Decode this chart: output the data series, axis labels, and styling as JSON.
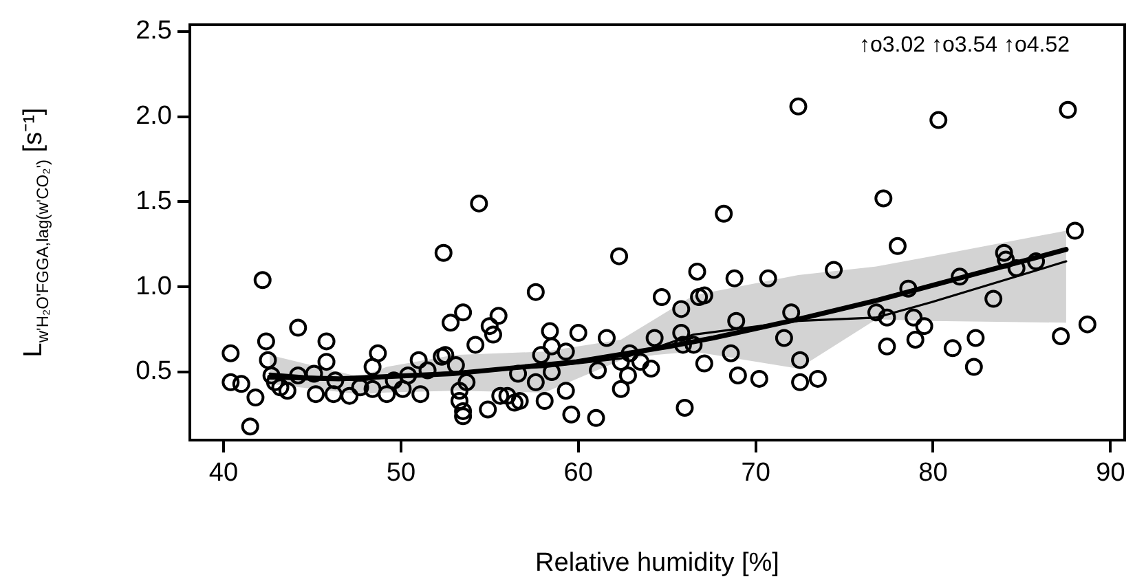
{
  "chart_data": {
    "type": "scatter",
    "xlabel": "Relative humidity [%]",
    "ylabel": "L$_{w'H₂O'FGGA,lag(w'CO₂')}$ [s⁻¹]",
    "annotations": [
      "↑o3.02 ↑o3.54 ↑o4.52"
    ],
    "xlim": [
      38.1,
      90.8
    ],
    "ylim": [
      0.1,
      2.54
    ],
    "xticks": [
      40,
      50,
      60,
      70,
      80,
      90
    ],
    "yticks": [
      0.5,
      {
        "value": 1,
        "label": "1.0"
      },
      1.5,
      {
        "value": 2,
        "label": "2.0"
      },
      2.5
    ],
    "grid": false,
    "legend": false,
    "marker": "circle",
    "series": [
      {
        "color": "#000000",
        "x": [
          40.4,
          40.4,
          41.0,
          41.8,
          41.5,
          42.2,
          42.4,
          42.5,
          42.7,
          42.9,
          43.2,
          43.6,
          44.2,
          44.2,
          45.1,
          45.2,
          45.8,
          45.8,
          46.2,
          46.3,
          47.1,
          47.7,
          48.4,
          48.4,
          48.7,
          49.2,
          49.6,
          50.1,
          50.4,
          51.0,
          51.1,
          51.5,
          52.3,
          52.5,
          52.4,
          52.8,
          53.1,
          53.5,
          53.3,
          53.3,
          53.5,
          53.5,
          53.7,
          54.2,
          54.4,
          55.0,
          55.2,
          55.5,
          54.9,
          55.6,
          56.0,
          56.4,
          56.7,
          56.6,
          57.6,
          57.6,
          57.9,
          58.1,
          58.4,
          58.5,
          58.5,
          59.3,
          59.3,
          59.6,
          60.0,
          61.0,
          61.1,
          61.6,
          62.3,
          62.4,
          62.4,
          62.8,
          62.9,
          63.5,
          64.1,
          64.3,
          64.7,
          65.8,
          65.8,
          65.9,
          66.0,
          66.5,
          66.7,
          66.8,
          67.1,
          67.1,
          68.2,
          68.6,
          68.9,
          69.0,
          70.2,
          70.7,
          68.8,
          71.6,
          72.0,
          72.4,
          72.5,
          72.5,
          73.5,
          74.4,
          76.8,
          77.2,
          77.4,
          77.4,
          78.0,
          78.6,
          78.9,
          79.0,
          79.5,
          80.3,
          81.1,
          81.5,
          82.3,
          82.4,
          83.4,
          84.0,
          84.1,
          84.7,
          85.8,
          87.2,
          87.6,
          88.0,
          88.7
        ],
        "values": [
          0.61,
          0.44,
          0.43,
          0.35,
          0.18,
          1.04,
          0.68,
          0.57,
          0.48,
          0.44,
          0.41,
          0.39,
          0.76,
          0.48,
          0.49,
          0.37,
          0.68,
          0.56,
          0.37,
          0.45,
          0.36,
          0.41,
          0.4,
          0.53,
          0.61,
          0.37,
          0.45,
          0.4,
          0.48,
          0.57,
          0.37,
          0.51,
          0.59,
          0.6,
          1.2,
          0.79,
          0.54,
          0.85,
          0.39,
          0.33,
          0.27,
          0.24,
          0.44,
          0.66,
          1.49,
          0.77,
          0.72,
          0.83,
          0.28,
          0.36,
          0.36,
          0.32,
          0.33,
          0.49,
          0.97,
          0.44,
          0.6,
          0.33,
          0.74,
          0.65,
          0.5,
          0.62,
          0.39,
          0.25,
          0.73,
          0.23,
          0.51,
          0.7,
          1.18,
          0.56,
          0.4,
          0.48,
          0.61,
          0.56,
          0.52,
          0.7,
          0.94,
          0.87,
          0.73,
          0.66,
          0.29,
          0.66,
          1.09,
          0.94,
          0.95,
          0.55,
          1.43,
          0.61,
          0.8,
          0.48,
          0.46,
          1.05,
          1.05,
          0.7,
          0.85,
          2.06,
          0.57,
          0.44,
          0.46,
          1.1,
          0.85,
          1.52,
          0.65,
          0.82,
          1.24,
          0.99,
          0.82,
          0.69,
          0.77,
          1.98,
          0.64,
          1.06,
          0.53,
          0.7,
          0.93,
          1.2,
          1.16,
          1.11,
          1.15,
          0.71,
          2.04,
          1.33,
          0.78
        ]
      },
      {
        "type": "line",
        "color": "#000000",
        "marker": "none",
        "x": [
          42.6,
          47.7,
          49.2,
          53.0,
          58.1,
          62.4,
          64.3,
          66.5,
          72.4,
          76.8,
          79.9,
          87.5
        ],
        "values": [
          0.49,
          0.45,
          0.47,
          0.5,
          0.53,
          0.58,
          0.64,
          0.72,
          0.8,
          0.82,
          0.91,
          1.15
        ],
        "lower": [
          0.43,
          0.37,
          0.38,
          0.39,
          0.38,
          0.57,
          0.6,
          0.62,
          0.52,
          0.81,
          0.8,
          0.79
        ],
        "upper": [
          0.6,
          0.47,
          0.53,
          0.6,
          0.62,
          0.69,
          0.81,
          0.95,
          1.07,
          1.12,
          1.18,
          1.33
        ]
      },
      {
        "type": "line",
        "color": "#000000",
        "marker": "none",
        "x": [
          42.6,
          46.5,
          52.9,
          59.9,
          65.1,
          67.6,
          72.4,
          76.8,
          80.0,
          87.5
        ],
        "values": [
          0.47,
          0.46,
          0.49,
          0.56,
          0.65,
          0.7,
          0.81,
          0.92,
          1.01,
          1.22
        ]
      }
    ]
  }
}
